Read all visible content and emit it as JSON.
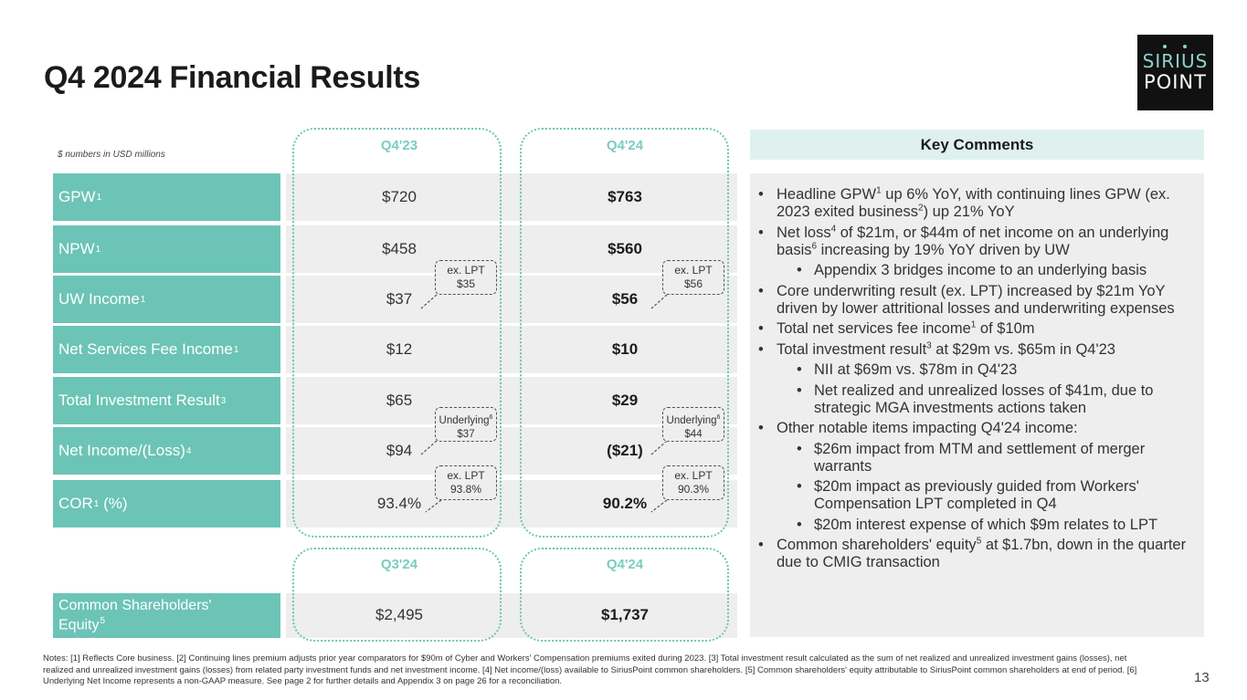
{
  "title": "Q4 2024 Financial Results",
  "logo": {
    "line1": "SIRIUS",
    "line2": "POINT"
  },
  "units_note": "$ numbers in USD millions",
  "period_headers": {
    "top_left": "Q4'23",
    "top_right": "Q4'24",
    "bottom_left": "Q3'24",
    "bottom_right": "Q4'24"
  },
  "metrics": [
    {
      "label": "GPW",
      "note": "1",
      "prior": "$720",
      "current": "$763"
    },
    {
      "label": "NPW",
      "note": "1",
      "prior": "$458",
      "current": "$560"
    },
    {
      "label": "UW Income",
      "note": "1",
      "prior": "$37",
      "current": "$56"
    },
    {
      "label": "Net Services Fee Income",
      "note": "1",
      "prior": "$12",
      "current": "$10"
    },
    {
      "label": "Total Investment Result",
      "note": "3",
      "prior": "$65",
      "current": "$29"
    },
    {
      "label": "Net Income/(Loss)",
      "note": "4",
      "prior": "$94",
      "current": "($21)"
    },
    {
      "label": "COR",
      "note": "1",
      "suffix": " (%)",
      "prior": "93.4%",
      "current": "90.2%"
    }
  ],
  "equity": {
    "label_line1": "Common Shareholders'",
    "label_line2": "Equity",
    "note": "5",
    "prior": "$2,495",
    "current": "$1,737"
  },
  "callouts": {
    "uw_prior": {
      "line1": "ex. LPT",
      "line2": "$35"
    },
    "uw_current": {
      "line1": "ex. LPT",
      "line2": "$56"
    },
    "ni_prior": {
      "line1": "Underlying",
      "note": "6",
      "line2": "$37"
    },
    "ni_current": {
      "line1": "Underlying",
      "note": "6",
      "line2": "$44"
    },
    "cor_prior": {
      "line1": "ex. LPT",
      "line2": "93.8%"
    },
    "cor_current": {
      "line1": "ex. LPT",
      "line2": "90.3%"
    }
  },
  "key_comments": {
    "header": "Key Comments",
    "b1": {
      "a": "Headline GPW",
      "n1": "1",
      "b": " up 6% YoY, with continuing lines GPW (ex. 2023 exited business",
      "n2": "2",
      "c": ") up 21% YoY"
    },
    "b2": {
      "a": "Net loss",
      "n1": "4",
      "b": " of $21m, or $44m of net income on an underlying basis",
      "n2": "6",
      "c": " increasing by 19% YoY driven by UW"
    },
    "b3": "Appendix 3 bridges income to an underlying basis",
    "b4": "Core underwriting result (ex. LPT) increased by $21m YoY driven by lower attritional losses and underwriting expenses",
    "b5": {
      "a": "Total net services fee income",
      "n1": "1",
      "b": " of $10m"
    },
    "b6": {
      "a": "Total investment result",
      "n1": "3",
      "b": " at $29m vs. $65m in Q4'23"
    },
    "b7": "NII at $69m vs. $78m in Q4'23",
    "b8": "Net realized and unrealized losses of $41m, due to strategic MGA investments actions taken",
    "b9": "Other notable items impacting Q4'24 income:",
    "b10": "$26m impact from MTM and settlement of merger warrants",
    "b11": "$20m impact as previously guided from Workers' Compensation LPT completed in Q4",
    "b12": "$20m interest expense of which $9m relates to LPT",
    "b13": {
      "a": "Common shareholders' equity",
      "n1": "5",
      "b": " at $1.7bn, down in the quarter due to CMIG transaction"
    }
  },
  "footnotes": "Notes: [1] Reflects Core business. [2] Continuing lines premium adjusts prior year comparators for $90m of Cyber and Workers' Compensation premiums exited during 2023. [3] Total investment result calculated as the sum of net realized and unrealized investment gains (losses), net realized and unrealized investment gains (losses) from related party investment funds and net investment income. [4] Net income/(loss) available to SiriusPoint common shareholders. [5] Common shareholders' equity attributable to SiriusPoint common shareholders at end of period. [6] Underlying Net Income represents a non-GAAP measure. See page 2 for further details and Appendix 3 on page 26 for a reconciliation.",
  "page_number": "13"
}
